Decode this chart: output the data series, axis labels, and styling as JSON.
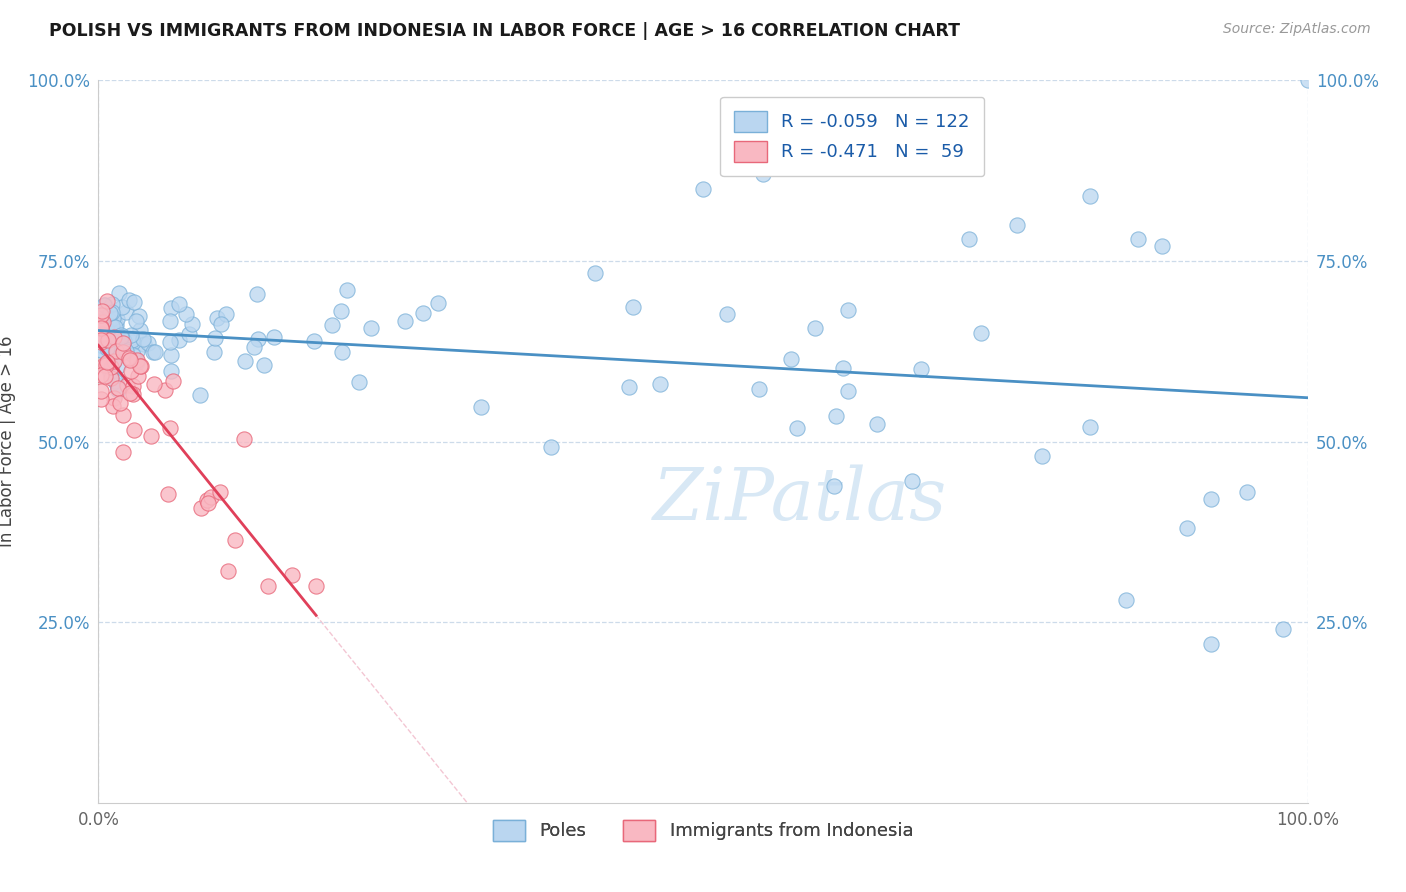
{
  "title": "POLISH VS IMMIGRANTS FROM INDONESIA IN LABOR FORCE | AGE > 16 CORRELATION CHART",
  "source": "Source: ZipAtlas.com",
  "ylabel": "In Labor Force | Age > 16",
  "xlim": [
    0.0,
    1.0
  ],
  "ylim": [
    0.0,
    1.0
  ],
  "xtick_vals": [
    0.0,
    1.0
  ],
  "xtick_labels": [
    "0.0%",
    "100.0%"
  ],
  "ytick_vals": [
    0.25,
    0.5,
    0.75,
    1.0
  ],
  "ytick_labels": [
    "25.0%",
    "50.0%",
    "75.0%",
    "100.0%"
  ],
  "color_blue": "#bad6f0",
  "color_pink": "#f9b8c2",
  "edge_blue": "#7ab0d8",
  "edge_pink": "#e8687a",
  "line_blue": "#4a90c4",
  "line_pink": "#e0405a",
  "line_diag": "#f0b8c8",
  "watermark_color": "#d8e8f5",
  "background_color": "#ffffff",
  "grid_color": "#c8d8e8",
  "title_color": "#1a1a1a",
  "source_color": "#999999",
  "tick_color_y": "#4a90c4",
  "tick_color_x": "#666666",
  "legend_text_color": "#1a5ba8",
  "legend_r1": "R = -0.059",
  "legend_n1": "N = 122",
  "legend_r2": "R = -0.471",
  "legend_n2": "N =  59"
}
